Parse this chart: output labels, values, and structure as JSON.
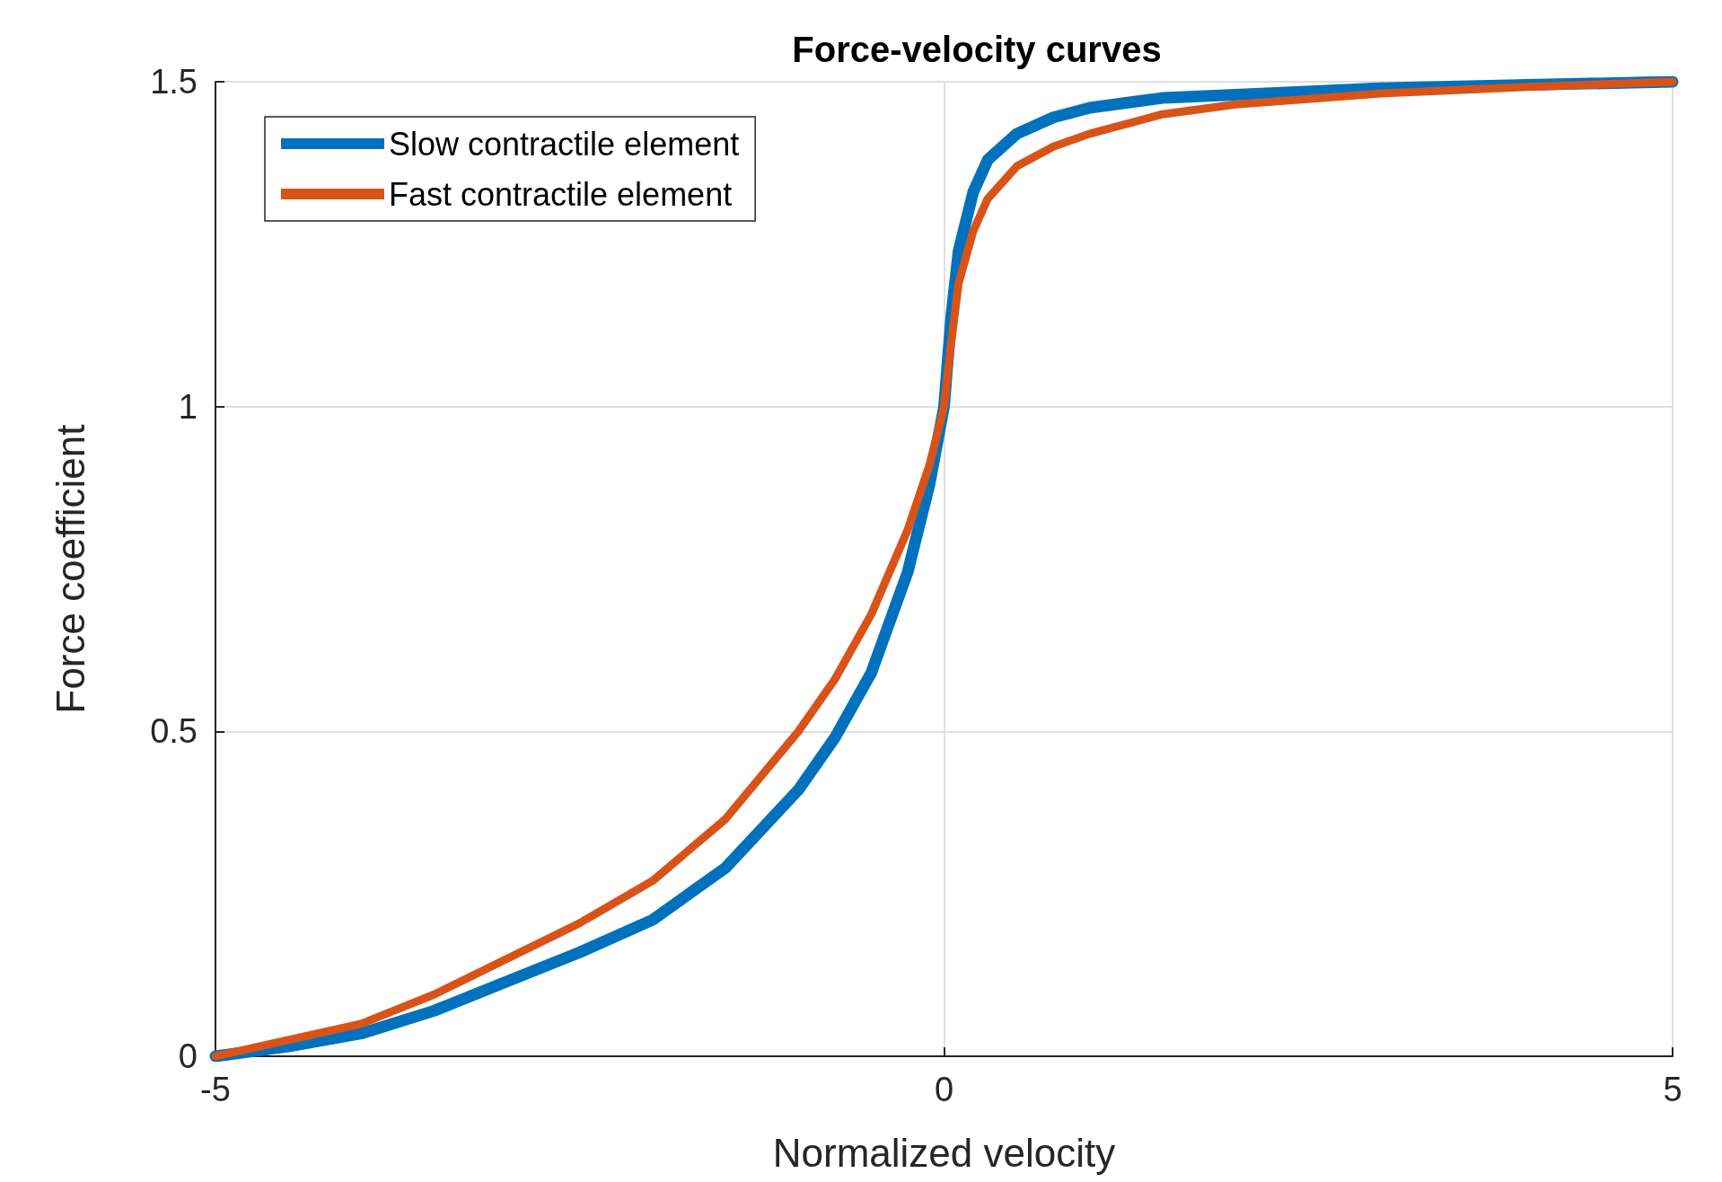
{
  "chart_data": {
    "type": "line",
    "title": "Force-velocity curves",
    "xlabel": "Normalized velocity",
    "ylabel": "Force coefficient",
    "x": [
      -5,
      -4.5,
      -4,
      -3.5,
      -3,
      -2.5,
      -2,
      -1.5,
      -1,
      -0.75,
      -0.5,
      -0.25,
      -0.1,
      0,
      0.05,
      0.1,
      0.2,
      0.3,
      0.5,
      0.75,
      1,
      1.5,
      2,
      3,
      4,
      5
    ],
    "series": [
      {
        "name": "Slow contractile element",
        "color": "#0072bd",
        "values": [
          0,
          0.015,
          0.035,
          0.07,
          0.115,
          0.16,
          0.21,
          0.29,
          0.41,
          0.49,
          0.59,
          0.745,
          0.88,
          1,
          1.14,
          1.24,
          1.33,
          1.38,
          1.42,
          1.445,
          1.46,
          1.475,
          1.48,
          1.49,
          1.495,
          1.5
        ]
      },
      {
        "name": "Fast contractile element",
        "color": "#d95319",
        "values": [
          0,
          0.025,
          0.05,
          0.095,
          0.15,
          0.205,
          0.27,
          0.365,
          0.5,
          0.58,
          0.68,
          0.81,
          0.91,
          1,
          1.1,
          1.19,
          1.27,
          1.32,
          1.37,
          1.4,
          1.42,
          1.45,
          1.465,
          1.482,
          1.492,
          1.5
        ]
      }
    ],
    "xlim": [
      -5,
      5
    ],
    "xticks": [
      -5,
      0,
      5
    ],
    "ylim": [
      0,
      1.5
    ],
    "yticks": [
      0,
      0.5,
      1,
      1.5
    ],
    "grid": true,
    "legend": "top left",
    "marker": "none",
    "line_style": "solid"
  }
}
